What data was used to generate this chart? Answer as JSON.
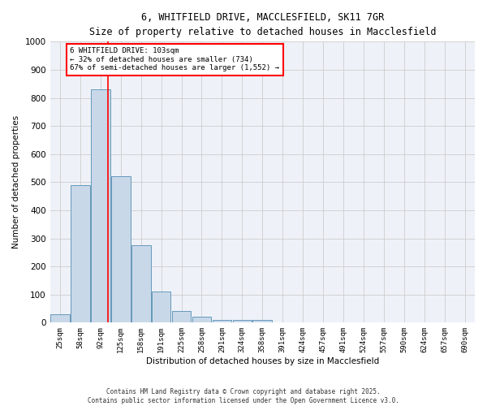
{
  "title_line1": "6, WHITFIELD DRIVE, MACCLESFIELD, SK11 7GR",
  "title_line2": "Size of property relative to detached houses in Macclesfield",
  "xlabel": "Distribution of detached houses by size in Macclesfield",
  "ylabel": "Number of detached properties",
  "bar_labels": [
    "25sqm",
    "58sqm",
    "92sqm",
    "125sqm",
    "158sqm",
    "191sqm",
    "225sqm",
    "258sqm",
    "291sqm",
    "324sqm",
    "358sqm",
    "391sqm",
    "424sqm",
    "457sqm",
    "491sqm",
    "524sqm",
    "557sqm",
    "590sqm",
    "624sqm",
    "657sqm",
    "690sqm"
  ],
  "bar_values": [
    30,
    490,
    830,
    520,
    275,
    110,
    40,
    20,
    10,
    10,
    10,
    0,
    0,
    0,
    0,
    0,
    0,
    0,
    0,
    0,
    0
  ],
  "bar_color": "#c8d8e8",
  "bar_edgecolor": "#6699bb",
  "red_line_x": 2.36,
  "annotation_text": "6 WHITFIELD DRIVE: 103sqm\n← 32% of detached houses are smaller (734)\n67% of semi-detached houses are larger (1,552) →",
  "annotation_box_color": "white",
  "annotation_box_edgecolor": "red",
  "ylim": [
    0,
    1000
  ],
  "yticks": [
    0,
    100,
    200,
    300,
    400,
    500,
    600,
    700,
    800,
    900,
    1000
  ],
  "grid_color": "#cccccc",
  "background_color": "#eef2f8",
  "footer_line1": "Contains HM Land Registry data © Crown copyright and database right 2025.",
  "footer_line2": "Contains public sector information licensed under the Open Government Licence v3.0."
}
